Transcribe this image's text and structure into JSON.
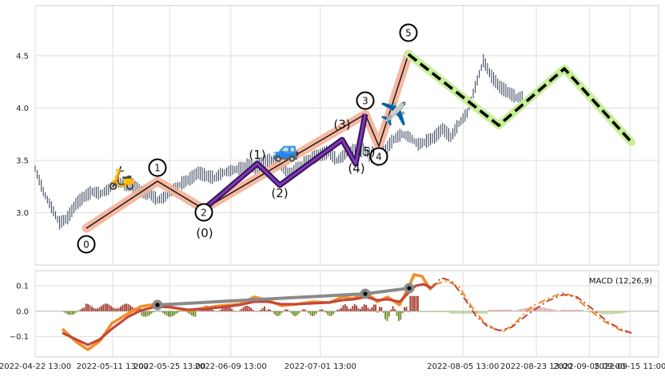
{
  "chart_data": [
    {
      "type": "candlestick",
      "panel": "price",
      "ylim": [
        2.5,
        4.98
      ],
      "yticks": [
        3.0,
        3.5,
        4.0,
        4.5
      ],
      "ytick_labels": [
        "3.0",
        "3.5",
        "4.0",
        "4.5"
      ],
      "grid": true,
      "price_series": {
        "dates": [
          "2022-04-22",
          "2022-04-24",
          "2022-04-26",
          "2022-04-28",
          "2022-04-30",
          "2022-05-02",
          "2022-05-04",
          "2022-05-06",
          "2022-05-08",
          "2022-05-10",
          "2022-05-12",
          "2022-05-14",
          "2022-05-16",
          "2022-05-18",
          "2022-05-20",
          "2022-05-22",
          "2022-05-24",
          "2022-05-26",
          "2022-05-28",
          "2022-05-30",
          "2022-06-01",
          "2022-06-03",
          "2022-06-05",
          "2022-06-07",
          "2022-06-09",
          "2022-06-11",
          "2022-06-13",
          "2022-06-15",
          "2022-06-17",
          "2022-06-19",
          "2022-06-21",
          "2022-06-23",
          "2022-06-25",
          "2022-06-27",
          "2022-06-29",
          "2022-07-01",
          "2022-07-03",
          "2022-07-05",
          "2022-07-07",
          "2022-07-09",
          "2022-07-11",
          "2022-07-13",
          "2022-07-15",
          "2022-07-17",
          "2022-07-19",
          "2022-07-21",
          "2022-07-23",
          "2022-07-25",
          "2022-07-27",
          "2022-07-29",
          "2022-07-31",
          "2022-08-02",
          "2022-08-04",
          "2022-08-06",
          "2022-08-08",
          "2022-08-10",
          "2022-08-12",
          "2022-08-14",
          "2022-08-16",
          "2022-08-18"
        ],
        "close": [
          3.42,
          3.2,
          3.05,
          2.9,
          2.95,
          3.08,
          3.15,
          3.2,
          3.18,
          3.22,
          3.3,
          3.27,
          3.25,
          3.2,
          3.18,
          3.12,
          3.15,
          3.22,
          3.28,
          3.32,
          3.38,
          3.35,
          3.33,
          3.38,
          3.4,
          3.42,
          3.45,
          3.43,
          3.48,
          3.5,
          3.45,
          3.38,
          3.42,
          3.47,
          3.52,
          3.55,
          3.58,
          3.5,
          3.55,
          3.6,
          3.62,
          3.55,
          3.5,
          3.6,
          3.7,
          3.75,
          3.72,
          3.65,
          3.68,
          3.72,
          3.8,
          3.72,
          3.85,
          3.95,
          4.2,
          4.45,
          4.3,
          4.2,
          4.15,
          4.1
        ]
      }
    },
    {
      "type": "line",
      "panel": "macd",
      "legend": "MACD (12,26,9)",
      "legend_position": "top-right",
      "ylim": [
        -0.18,
        0.16
      ],
      "yticks": [
        -0.1,
        0.0,
        0.1
      ],
      "ytick_labels": [
        "−0.1",
        "0.0",
        "0.1"
      ],
      "x_tick_labels": [
        "2022-04-22 13:00",
        "2022-05-11 13:00",
        "2022-05-25 13:00",
        "2022-06-09 13:00",
        "2022-07-01 13:00",
        "2022-08-05 13:00",
        "2022-08-23 13:00",
        "2022-09-05 09:00",
        "2022-09-15 11:00"
      ],
      "x_tick_dates": [
        "2022-04-22",
        "2022-05-11",
        "2022-05-25",
        "2022-06-09",
        "2022-07-01",
        "2022-08-05",
        "2022-08-23",
        "2022-09-05",
        "2022-09-15"
      ],
      "x_axis_span": [
        "2022-04-22",
        "2022-09-22"
      ],
      "wave_labels": {
        "primary": [
          "0",
          "1",
          "2",
          "3",
          "4",
          "5"
        ],
        "sub": [
          "(0)",
          "(1)",
          "(2)",
          "(3)",
          "(4)",
          "(5)"
        ]
      }
    }
  ]
}
